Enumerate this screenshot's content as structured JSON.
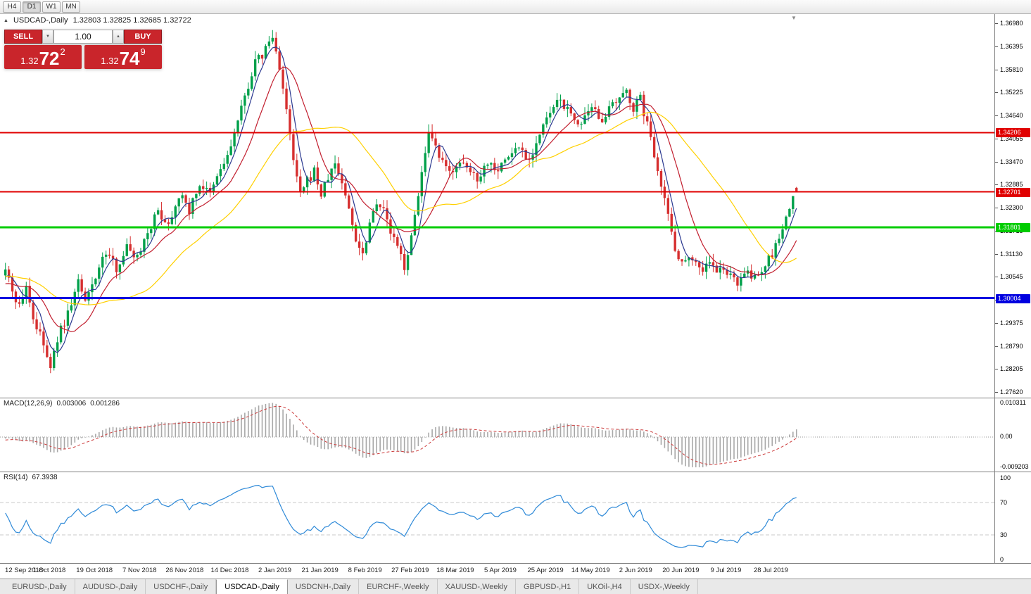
{
  "toolbar": {
    "timeframes": [
      {
        "label": "H4",
        "active": false
      },
      {
        "label": "D1",
        "active": true
      },
      {
        "label": "W1",
        "active": false
      },
      {
        "label": "MN",
        "active": false
      }
    ]
  },
  "main_chart": {
    "title_symbol": "USDCAD-,Daily",
    "title_ohlc": "1.32803 1.32825 1.32685 1.32722"
  },
  "trade_panel": {
    "sell_label": "SELL",
    "buy_label": "BUY",
    "volume": "1.00",
    "sell_price": {
      "head": "1.32",
      "big": "72",
      "sup": "2"
    },
    "buy_price": {
      "head": "1.32",
      "big": "74",
      "sup": "9"
    }
  },
  "indicators": {
    "macd": {
      "label": "MACD(12,26,9)",
      "main_value": "0.003006",
      "signal_value": "0.001286",
      "axis_top": "0.010311",
      "axis_zero": "0.00",
      "axis_bottom": "-0.009203"
    },
    "rsi": {
      "label": "RSI(14)",
      "value": "67.3938",
      "axis": [
        100,
        70,
        30,
        0
      ]
    }
  },
  "tabs": [
    {
      "label": "EURUSD-,Daily",
      "active": false
    },
    {
      "label": "AUDUSD-,Daily",
      "active": false
    },
    {
      "label": "USDCHF-,Daily",
      "active": false
    },
    {
      "label": "USDCAD-,Daily",
      "active": true
    },
    {
      "label": "USDCNH-,Daily",
      "active": false
    },
    {
      "label": "EURCHF-,Weekly",
      "active": false
    },
    {
      "label": "XAUUSD-,Weekly",
      "active": false
    },
    {
      "label": "GBPUSD-,H1",
      "active": false
    },
    {
      "label": "UKOil-,H4",
      "active": false
    },
    {
      "label": "USDX-,Weekly",
      "active": false
    }
  ],
  "chart_data": {
    "type": "candlestick",
    "symbol": "USDCAD",
    "period": "Daily",
    "last_ohlc": {
      "open": 1.32803,
      "high": 1.32825,
      "low": 1.32685,
      "close": 1.32722
    },
    "y_axis_ticks": [
      "1.36980",
      "1.36395",
      "1.35810",
      "1.35225",
      "1.34640",
      "1.34055",
      "1.33470",
      "1.32885",
      "1.32300",
      "1.31715",
      "1.31130",
      "1.30545",
      "1.29960",
      "1.29375",
      "1.28790",
      "1.28205",
      "1.27620"
    ],
    "x_labels": [
      "12 Sep 2018",
      "1 Oct 2018",
      "19 Oct 2018",
      "7 Nov 2018",
      "26 Nov 2018",
      "14 Dec 2018",
      "2 Jan 2019",
      "21 Jan 2019",
      "8 Feb 2019",
      "27 Feb 2019",
      "18 Mar 2019",
      "5 Apr 2019",
      "25 Apr 2019",
      "14 May 2019",
      "2 Jun 2019",
      "20 Jun 2019",
      "9 Jul 2019",
      "28 Jul 2019"
    ],
    "days_per_label": 13,
    "candle_count": 229,
    "horizontal_levels": [
      {
        "price": 1.34206,
        "label": "1.34206",
        "color": "#e00000",
        "width": 2
      },
      {
        "price": 1.32701,
        "label": "1.32701",
        "color": "#e00000",
        "width": 2
      },
      {
        "price": 1.31801,
        "label": "1.31801",
        "color": "#00cc00",
        "width": 3
      },
      {
        "price": 1.30004,
        "label": "1.30004",
        "color": "#0000e0",
        "width": 3
      }
    ],
    "moving_averages": [
      {
        "period": 5,
        "color": "#2b3990"
      },
      {
        "period": 13,
        "color": "#c21f2f"
      },
      {
        "period": 34,
        "color": "#ffd000"
      }
    ],
    "colors": {
      "up": "#00a04a",
      "down": "#d62f2f",
      "macd_hist": "#a8a8a8",
      "macd_signal": "#cc3b3b",
      "rsi_line": "#2f8ad8"
    },
    "macd": {
      "fast": 12,
      "slow": 26,
      "signal": 9,
      "current_main": 0.003006,
      "current_signal": 0.001286,
      "axis_max": 0.010311,
      "axis_min": -0.009203
    },
    "rsi": {
      "period": 14,
      "current": 67.3938,
      "levels": [
        70,
        30
      ]
    },
    "close_waypoints": [
      [
        -50,
        1.3148
      ],
      [
        -35,
        1.3028
      ],
      [
        -20,
        1.3092
      ],
      [
        -8,
        1.3012
      ],
      [
        0,
        1.3068
      ],
      [
        2,
        1.3022
      ],
      [
        4,
        1.2978
      ],
      [
        6,
        1.3035
      ],
      [
        8,
        1.2948
      ],
      [
        11,
        1.2882
      ],
      [
        13,
        1.2818
      ],
      [
        15,
        1.2898
      ],
      [
        18,
        1.2962
      ],
      [
        21,
        1.3042
      ],
      [
        23,
        1.2986
      ],
      [
        26,
        1.3058
      ],
      [
        29,
        1.3116
      ],
      [
        32,
        1.3078
      ],
      [
        35,
        1.313
      ],
      [
        38,
        1.3106
      ],
      [
        41,
        1.317
      ],
      [
        44,
        1.322
      ],
      [
        47,
        1.3188
      ],
      [
        50,
        1.3265
      ],
      [
        53,
        1.3224
      ],
      [
        56,
        1.329
      ],
      [
        59,
        1.3262
      ],
      [
        62,
        1.3328
      ],
      [
        64,
        1.3358
      ],
      [
        66,
        1.3418
      ],
      [
        68,
        1.3478
      ],
      [
        70,
        1.3542
      ],
      [
        72,
        1.3598
      ],
      [
        74,
        1.3616
      ],
      [
        76,
        1.3652
      ],
      [
        77,
        1.366
      ],
      [
        79,
        1.359
      ],
      [
        81,
        1.3472
      ],
      [
        83,
        1.3348
      ],
      [
        85,
        1.3262
      ],
      [
        87,
        1.3295
      ],
      [
        89,
        1.3324
      ],
      [
        91,
        1.3262
      ],
      [
        93,
        1.3306
      ],
      [
        95,
        1.3342
      ],
      [
        97,
        1.3295
      ],
      [
        99,
        1.3225
      ],
      [
        101,
        1.3152
      ],
      [
        103,
        1.3112
      ],
      [
        105,
        1.3194
      ],
      [
        107,
        1.325
      ],
      [
        109,
        1.3222
      ],
      [
        111,
        1.3168
      ],
      [
        113,
        1.3128
      ],
      [
        115,
        1.3082
      ],
      [
        117,
        1.315
      ],
      [
        119,
        1.327
      ],
      [
        121,
        1.3362
      ],
      [
        122,
        1.3412
      ],
      [
        124,
        1.3378
      ],
      [
        126,
        1.334
      ],
      [
        128,
        1.3318
      ],
      [
        130,
        1.3342
      ],
      [
        133,
        1.3328
      ],
      [
        136,
        1.3306
      ],
      [
        139,
        1.3346
      ],
      [
        142,
        1.333
      ],
      [
        145,
        1.336
      ],
      [
        148,
        1.3386
      ],
      [
        151,
        1.3352
      ],
      [
        154,
        1.3416
      ],
      [
        157,
        1.347
      ],
      [
        160,
        1.3504
      ],
      [
        163,
        1.3462
      ],
      [
        166,
        1.3442
      ],
      [
        169,
        1.3476
      ],
      [
        172,
        1.3458
      ],
      [
        175,
        1.3486
      ],
      [
        178,
        1.351
      ],
      [
        179,
        1.353
      ],
      [
        181,
        1.3482
      ],
      [
        183,
        1.3506
      ],
      [
        185,
        1.344
      ],
      [
        187,
        1.3368
      ],
      [
        189,
        1.3295
      ],
      [
        191,
        1.321
      ],
      [
        193,
        1.313
      ],
      [
        195,
        1.3086
      ],
      [
        197,
        1.3114
      ],
      [
        199,
        1.309
      ],
      [
        201,
        1.3072
      ],
      [
        203,
        1.3096
      ],
      [
        205,
        1.3062
      ],
      [
        207,
        1.3078
      ],
      [
        209,
        1.3052
      ],
      [
        211,
        1.3042
      ],
      [
        213,
        1.307
      ],
      [
        215,
        1.3048
      ],
      [
        217,
        1.3062
      ],
      [
        219,
        1.3085
      ],
      [
        221,
        1.3112
      ],
      [
        223,
        1.3152
      ],
      [
        225,
        1.3198
      ],
      [
        227,
        1.3262
      ],
      [
        228,
        1.3272
      ]
    ]
  }
}
